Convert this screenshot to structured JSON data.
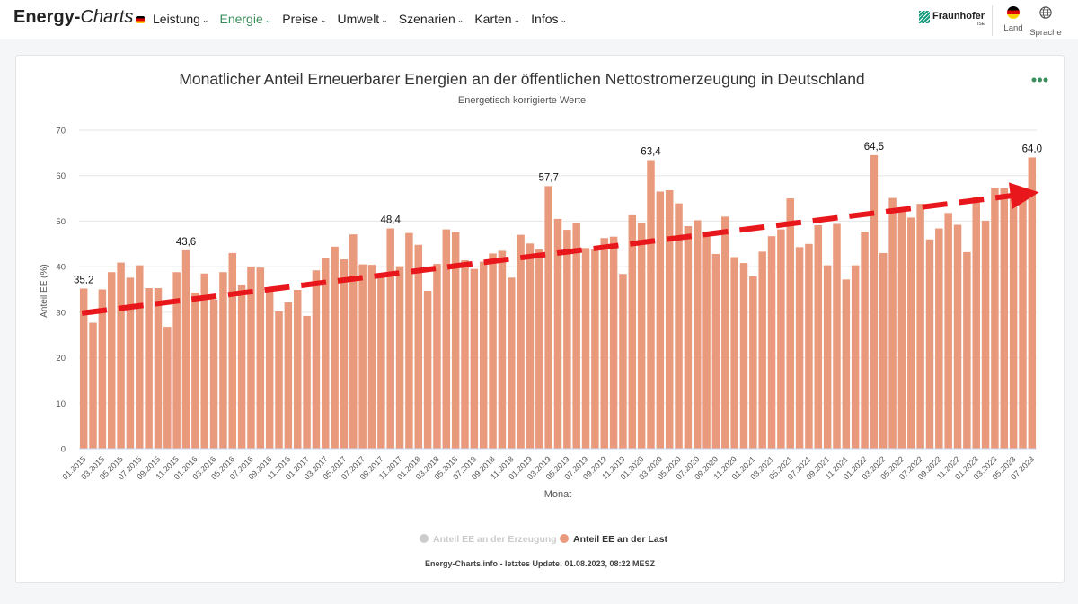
{
  "header": {
    "brand": {
      "bold": "Energy-",
      "italic": "Charts"
    },
    "nav": [
      {
        "label": "Leistung",
        "active": false
      },
      {
        "label": "Energie",
        "active": true
      },
      {
        "label": "Preise",
        "active": false
      },
      {
        "label": "Umwelt",
        "active": false
      },
      {
        "label": "Szenarien",
        "active": false
      },
      {
        "label": "Karten",
        "active": false
      },
      {
        "label": "Infos",
        "active": false
      }
    ],
    "fraunhofer": {
      "name": "Fraunhofer",
      "sub": "ISE"
    },
    "land_label": "Land",
    "sprache_label": "Sprache",
    "icons": {
      "land": "german-flag-icon",
      "sprache": "globe-icon",
      "nav_chevron": "chevron-down-icon",
      "menu": "more-dots-icon"
    }
  },
  "colors": {
    "accent": "#3b8f5c",
    "bar": "#ea9a7c",
    "trend": "#e8171b",
    "legend_inactive": "#cccccc"
  },
  "chart_data": {
    "type": "bar",
    "title": "Monatlicher Anteil Erneuerbarer Energien an der öffentlichen Nettostromerzeugung in Deutschland",
    "subtitle": "Energetisch korrigierte Werte",
    "xlabel": "Monat",
    "ylabel": "Anteil EE (%)",
    "ylim": [
      0,
      70
    ],
    "yticks": [
      0,
      10,
      20,
      30,
      40,
      50,
      60,
      70
    ],
    "grid": true,
    "categories": [
      "01.2015",
      "02.2015",
      "03.2015",
      "04.2015",
      "05.2015",
      "06.2015",
      "07.2015",
      "08.2015",
      "09.2015",
      "10.2015",
      "11.2015",
      "12.2015",
      "01.2016",
      "02.2016",
      "03.2016",
      "04.2016",
      "05.2016",
      "06.2016",
      "07.2016",
      "08.2016",
      "09.2016",
      "10.2016",
      "11.2016",
      "12.2016",
      "01.2017",
      "02.2017",
      "03.2017",
      "04.2017",
      "05.2017",
      "06.2017",
      "07.2017",
      "08.2017",
      "09.2017",
      "10.2017",
      "11.2017",
      "12.2017",
      "01.2018",
      "02.2018",
      "03.2018",
      "04.2018",
      "05.2018",
      "06.2018",
      "07.2018",
      "08.2018",
      "09.2018",
      "10.2018",
      "11.2018",
      "12.2018",
      "01.2019",
      "02.2019",
      "03.2019",
      "04.2019",
      "05.2019",
      "06.2019",
      "07.2019",
      "08.2019",
      "09.2019",
      "10.2019",
      "11.2019",
      "12.2019",
      "01.2020",
      "02.2020",
      "03.2020",
      "04.2020",
      "05.2020",
      "06.2020",
      "07.2020",
      "08.2020",
      "09.2020",
      "10.2020",
      "11.2020",
      "12.2020",
      "01.2021",
      "02.2021",
      "03.2021",
      "04.2021",
      "05.2021",
      "06.2021",
      "07.2021",
      "08.2021",
      "09.2021",
      "10.2021",
      "11.2021",
      "12.2021",
      "01.2022",
      "02.2022",
      "03.2022",
      "04.2022",
      "05.2022",
      "06.2022",
      "07.2022",
      "08.2022",
      "09.2022",
      "10.2022",
      "11.2022",
      "12.2022",
      "01.2023",
      "02.2023",
      "03.2023",
      "04.2023",
      "05.2023",
      "06.2023",
      "07.2023"
    ],
    "xtick_labels": [
      "01.2015",
      "03.2015",
      "05.2015",
      "07.2015",
      "09.2015",
      "11.2015",
      "01.2016",
      "03.2016",
      "05.2016",
      "07.2016",
      "09.2016",
      "11.2016",
      "01.2017",
      "03.2017",
      "05.2017",
      "07.2017",
      "09.2017",
      "11.2017",
      "01.2018",
      "03.2018",
      "05.2018",
      "07.2018",
      "09.2018",
      "11.2018",
      "01.2019",
      "03.2019",
      "05.2019",
      "07.2019",
      "09.2019",
      "11.2019",
      "01.2020",
      "03.2020",
      "05.2020",
      "07.2020",
      "09.2020",
      "11.2020",
      "01.2021",
      "03.2021",
      "05.2021",
      "07.2021",
      "09.2021",
      "11.2021",
      "01.2022",
      "03.2022",
      "05.2022",
      "07.2022",
      "09.2022",
      "11.2022",
      "01.2023",
      "03.2023",
      "05.2023",
      "07.2023"
    ],
    "series": [
      {
        "name": "Anteil EE an der Last",
        "values": [
          35.2,
          27.7,
          35.0,
          38.8,
          40.9,
          37.6,
          40.3,
          35.3,
          35.3,
          26.8,
          38.8,
          43.6,
          34.3,
          38.5,
          32.8,
          38.8,
          43.0,
          35.9,
          40.0,
          39.8,
          35.1,
          30.2,
          32.2,
          34.9,
          29.2,
          39.2,
          41.8,
          44.4,
          41.6,
          47.1,
          40.5,
          40.4,
          37.9,
          48.4,
          40.1,
          47.4,
          44.8,
          34.7,
          40.6,
          48.2,
          47.6,
          41.4,
          39.5,
          41.1,
          42.9,
          43.5,
          37.6,
          47.0,
          45.1,
          43.8,
          57.7,
          50.5,
          48.1,
          49.7,
          44.1,
          43.8,
          46.3,
          46.6,
          38.4,
          51.3,
          49.7,
          63.4,
          56.5,
          56.8,
          53.9,
          48.9,
          50.2,
          47.5,
          42.8,
          51.0,
          42.1,
          40.8,
          37.9,
          43.3,
          46.7,
          48.2,
          55.0,
          44.3,
          45.0,
          49.1,
          40.3,
          49.4,
          37.2,
          40.3,
          47.7,
          64.5,
          43.0,
          55.1,
          52.3,
          50.8,
          53.8,
          46.0,
          48.4,
          51.8,
          49.2,
          43.2,
          55.4,
          50.1,
          57.3,
          57.2,
          55.6,
          55.6,
          64.0
        ]
      }
    ],
    "data_labels": [
      {
        "index": 0,
        "text": "35,2"
      },
      {
        "index": 11,
        "text": "43,6"
      },
      {
        "index": 33,
        "text": "48,4"
      },
      {
        "index": 50,
        "text": "57,7"
      },
      {
        "index": 61,
        "text": "63,4"
      },
      {
        "index": 85,
        "text": "64,5"
      },
      {
        "index": 102,
        "text": "64,0"
      }
    ],
    "trend": {
      "start_value": 29.8,
      "end_value": 55.6,
      "style": "dashed-arrow"
    },
    "legend": {
      "placement": "bottom-center",
      "items": [
        {
          "label": "Anteil EE an der Erzeugung",
          "active": false
        },
        {
          "label": "Anteil EE an der Last",
          "active": true
        }
      ]
    },
    "credits": "Energy-Charts.info - letztes Update: 01.08.2023, 08:22 MESZ"
  }
}
